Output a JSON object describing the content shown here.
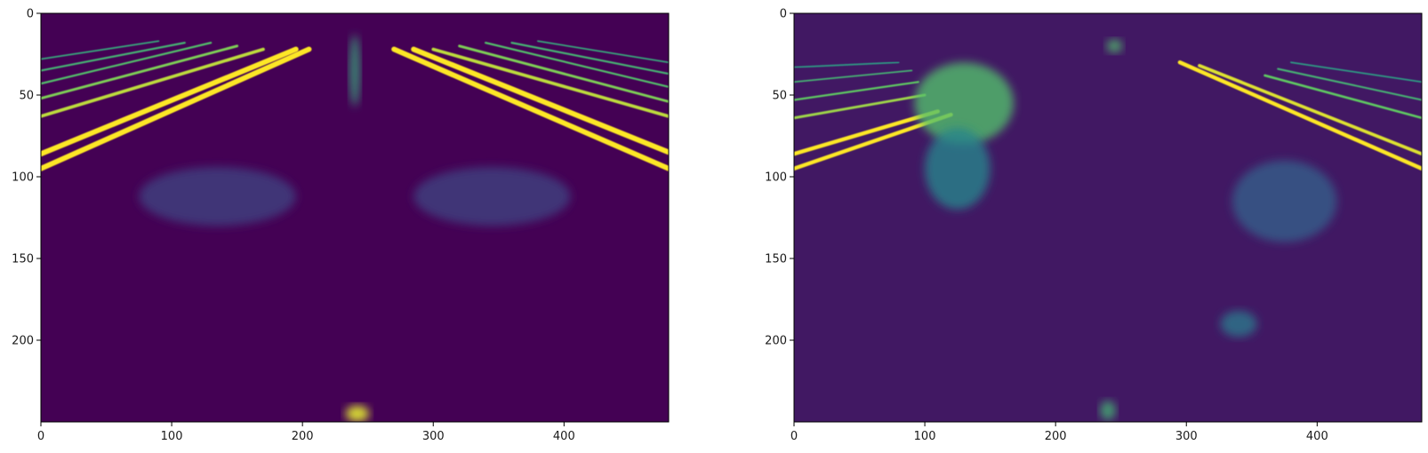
{
  "chart_data": [
    {
      "type": "heatmap",
      "title": "",
      "xlabel": "",
      "ylabel": "",
      "colormap": "viridis",
      "xlim": [
        0,
        480
      ],
      "ylim": [
        250,
        0
      ],
      "x_ticks": [
        0,
        100,
        200,
        300,
        400
      ],
      "y_ticks": [
        0,
        50,
        100,
        150,
        200
      ],
      "background_value": 0.0,
      "features": [
        {
          "kind": "lane-band",
          "x1": 0,
          "y1": 95,
          "x2": 205,
          "y2": 22,
          "width": 4,
          "value": 1.0
        },
        {
          "kind": "lane-band",
          "x1": 0,
          "y1": 86,
          "x2": 195,
          "y2": 22,
          "width": 4,
          "value": 1.0
        },
        {
          "kind": "lane-band",
          "x1": 0,
          "y1": 63,
          "x2": 170,
          "y2": 22,
          "width": 2.5,
          "value": 0.9
        },
        {
          "kind": "lane-band",
          "x1": 0,
          "y1": 52,
          "x2": 150,
          "y2": 20,
          "width": 2,
          "value": 0.8
        },
        {
          "kind": "lane-band",
          "x1": 0,
          "y1": 43,
          "x2": 130,
          "y2": 18,
          "width": 1.5,
          "value": 0.7
        },
        {
          "kind": "lane-band",
          "x1": 0,
          "y1": 35,
          "x2": 110,
          "y2": 18,
          "width": 1.5,
          "value": 0.65
        },
        {
          "kind": "lane-band",
          "x1": 0,
          "y1": 28,
          "x2": 90,
          "y2": 17,
          "width": 1.2,
          "value": 0.6
        },
        {
          "kind": "lane-band",
          "x1": 270,
          "y1": 22,
          "x2": 480,
          "y2": 95,
          "width": 4,
          "value": 1.0
        },
        {
          "kind": "lane-band",
          "x1": 285,
          "y1": 22,
          "x2": 480,
          "y2": 85,
          "width": 4,
          "value": 1.0
        },
        {
          "kind": "lane-band",
          "x1": 300,
          "y1": 22,
          "x2": 480,
          "y2": 63,
          "width": 2.5,
          "value": 0.9
        },
        {
          "kind": "lane-band",
          "x1": 320,
          "y1": 20,
          "x2": 480,
          "y2": 54,
          "width": 2,
          "value": 0.8
        },
        {
          "kind": "lane-band",
          "x1": 340,
          "y1": 18,
          "x2": 480,
          "y2": 45,
          "width": 1.5,
          "value": 0.7
        },
        {
          "kind": "lane-band",
          "x1": 360,
          "y1": 18,
          "x2": 480,
          "y2": 37,
          "width": 1.5,
          "value": 0.65
        },
        {
          "kind": "lane-band",
          "x1": 380,
          "y1": 17,
          "x2": 480,
          "y2": 30,
          "width": 1.2,
          "value": 0.6
        },
        {
          "kind": "blob",
          "cx": 240,
          "cy": 35,
          "rx": 4,
          "ry": 22,
          "value": 0.6
        },
        {
          "kind": "blob",
          "cx": 135,
          "cy": 112,
          "rx": 60,
          "ry": 18,
          "value": 0.2
        },
        {
          "kind": "blob",
          "cx": 345,
          "cy": 112,
          "rx": 60,
          "ry": 18,
          "value": 0.2
        },
        {
          "kind": "blob",
          "cx": 242,
          "cy": 245,
          "rx": 9,
          "ry": 5,
          "value": 0.95
        }
      ]
    },
    {
      "type": "heatmap",
      "title": "",
      "xlabel": "",
      "ylabel": "",
      "colormap": "viridis",
      "xlim": [
        0,
        480
      ],
      "ylim": [
        250,
        0
      ],
      "x_ticks": [
        0,
        100,
        200,
        300,
        400
      ],
      "y_ticks": [
        0,
        50,
        100,
        150,
        200
      ],
      "background_value": 0.07,
      "features": [
        {
          "kind": "lane-band",
          "x1": 0,
          "y1": 95,
          "x2": 120,
          "y2": 62,
          "width": 3,
          "value": 1.0
        },
        {
          "kind": "lane-band",
          "x1": 0,
          "y1": 86,
          "x2": 110,
          "y2": 60,
          "width": 3,
          "value": 1.0
        },
        {
          "kind": "lane-band",
          "x1": 0,
          "y1": 64,
          "x2": 100,
          "y2": 50,
          "width": 2,
          "value": 0.85
        },
        {
          "kind": "lane-band",
          "x1": 0,
          "y1": 53,
          "x2": 95,
          "y2": 42,
          "width": 1.5,
          "value": 0.75
        },
        {
          "kind": "lane-band",
          "x1": 0,
          "y1": 42,
          "x2": 90,
          "y2": 35,
          "width": 1.2,
          "value": 0.65
        },
        {
          "kind": "lane-band",
          "x1": 0,
          "y1": 33,
          "x2": 80,
          "y2": 30,
          "width": 1.2,
          "value": 0.55
        },
        {
          "kind": "lane-band",
          "x1": 295,
          "y1": 30,
          "x2": 480,
          "y2": 95,
          "width": 3,
          "value": 1.0
        },
        {
          "kind": "lane-band",
          "x1": 310,
          "y1": 32,
          "x2": 480,
          "y2": 86,
          "width": 2.5,
          "value": 0.95
        },
        {
          "kind": "lane-band",
          "x1": 360,
          "y1": 38,
          "x2": 480,
          "y2": 64,
          "width": 1.8,
          "value": 0.75
        },
        {
          "kind": "lane-band",
          "x1": 370,
          "y1": 34,
          "x2": 480,
          "y2": 53,
          "width": 1.4,
          "value": 0.65
        },
        {
          "kind": "lane-band",
          "x1": 380,
          "y1": 30,
          "x2": 480,
          "y2": 42,
          "width": 1.2,
          "value": 0.55
        },
        {
          "kind": "blob",
          "cx": 130,
          "cy": 55,
          "rx": 38,
          "ry": 25,
          "value": 0.7
        },
        {
          "kind": "blob",
          "cx": 125,
          "cy": 95,
          "rx": 25,
          "ry": 25,
          "value": 0.45
        },
        {
          "kind": "blob",
          "cx": 245,
          "cy": 20,
          "rx": 6,
          "ry": 4,
          "value": 0.7
        },
        {
          "kind": "blob",
          "cx": 375,
          "cy": 115,
          "rx": 40,
          "ry": 25,
          "value": 0.3
        },
        {
          "kind": "blob",
          "cx": 340,
          "cy": 190,
          "rx": 14,
          "ry": 8,
          "value": 0.4
        },
        {
          "kind": "blob",
          "cx": 240,
          "cy": 243,
          "rx": 6,
          "ry": 6,
          "value": 0.65
        }
      ]
    }
  ]
}
